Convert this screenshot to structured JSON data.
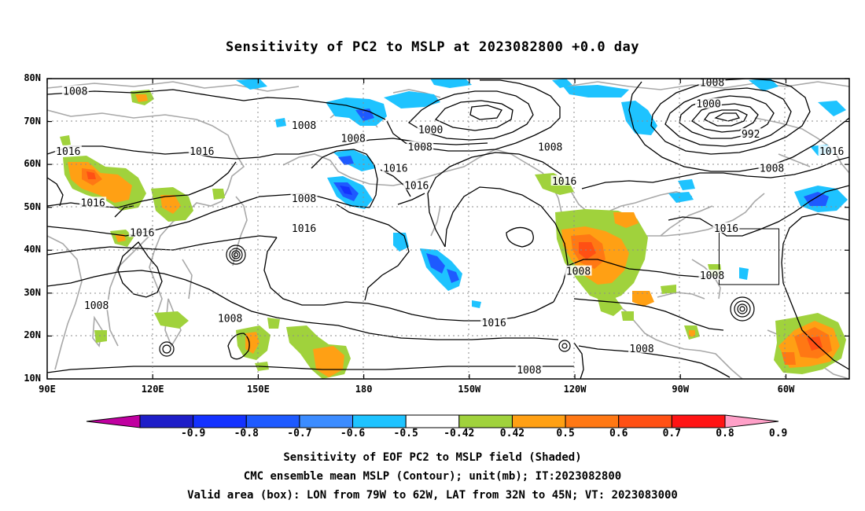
{
  "title": "Sensitivity of PC2 to MSLP at 2023082800 +0.0 day",
  "map": {
    "lat_labels": [
      "80N",
      "70N",
      "60N",
      "50N",
      "40N",
      "30N",
      "20N",
      "10N"
    ],
    "lat_values": [
      80,
      70,
      60,
      50,
      40,
      30,
      20,
      10
    ],
    "lon_labels": [
      "90E",
      "120E",
      "150E",
      "180",
      "150W",
      "120W",
      "90W",
      "60W"
    ],
    "lon_values": [
      90,
      120,
      150,
      180,
      210,
      240,
      270,
      300
    ],
    "lon_range": [
      90,
      318
    ],
    "lat_range": [
      10,
      80
    ],
    "valid_box": {
      "lon_west": -79,
      "lon_east": -62,
      "lat_south": 32,
      "lat_north": 45
    },
    "contour_labels": [
      {
        "text": "1008",
        "lon": 98,
        "lat": 77
      },
      {
        "text": "1008",
        "lon": 163,
        "lat": 69
      },
      {
        "text": "1008",
        "lon": 177,
        "lat": 66
      },
      {
        "text": "1000",
        "lon": 199,
        "lat": 68
      },
      {
        "text": "1008",
        "lon": 196,
        "lat": 64
      },
      {
        "text": "1008",
        "lon": 233,
        "lat": 64
      },
      {
        "text": "1008",
        "lon": 279,
        "lat": 79
      },
      {
        "text": "1000",
        "lon": 278,
        "lat": 74
      },
      {
        "text": "992",
        "lon": 290,
        "lat": 67
      },
      {
        "text": "1016",
        "lon": 313,
        "lat": 63
      },
      {
        "text": "1008",
        "lon": 296,
        "lat": 59
      },
      {
        "text": "1016",
        "lon": 96,
        "lat": 63
      },
      {
        "text": "1016",
        "lon": 134,
        "lat": 63
      },
      {
        "text": "1016",
        "lon": 189,
        "lat": 59
      },
      {
        "text": "1016",
        "lon": 195,
        "lat": 55
      },
      {
        "text": "1016",
        "lon": 237,
        "lat": 56
      },
      {
        "text": "1008",
        "lon": 163,
        "lat": 52
      },
      {
        "text": "1016",
        "lon": 103,
        "lat": 51
      },
      {
        "text": "1016",
        "lon": 163,
        "lat": 45
      },
      {
        "text": "1016",
        "lon": 117,
        "lat": 44
      },
      {
        "text": "1016",
        "lon": 283,
        "lat": 45
      },
      {
        "text": "1008",
        "lon": 241,
        "lat": 35
      },
      {
        "text": "1008",
        "lon": 279,
        "lat": 34
      },
      {
        "text": "1008",
        "lon": 104,
        "lat": 27
      },
      {
        "text": "1008",
        "lon": 142,
        "lat": 24
      },
      {
        "text": "1016",
        "lon": 217,
        "lat": 23
      },
      {
        "text": "1008",
        "lon": 259,
        "lat": 17
      },
      {
        "text": "1008",
        "lon": 227,
        "lat": 12
      }
    ]
  },
  "colorbar": {
    "labels": [
      "-0.9",
      "-0.8",
      "-0.7",
      "-0.6",
      "-0.5",
      "-0.42",
      "0.42",
      "0.5",
      "0.6",
      "0.7",
      "0.8",
      "0.9"
    ],
    "colors": [
      "#c000a0",
      "#1e1ec8",
      "#1432ff",
      "#1e5aff",
      "#3c8cff",
      "#1ec3ff",
      "#ffffff",
      "#a0d23c",
      "#ffa014",
      "#ff7814",
      "#ff5014",
      "#ff1414",
      "#ffa0c8"
    ]
  },
  "captions": [
    "Sensitivity of EOF PC2 to MSLP field (Shaded)",
    "CMC ensemble mean MSLP (Contour); unit(mb); IT:2023082800",
    "Valid area (box): LON from 79W to 62W, LAT from 32N to 45N; VT: 2023083000"
  ]
}
